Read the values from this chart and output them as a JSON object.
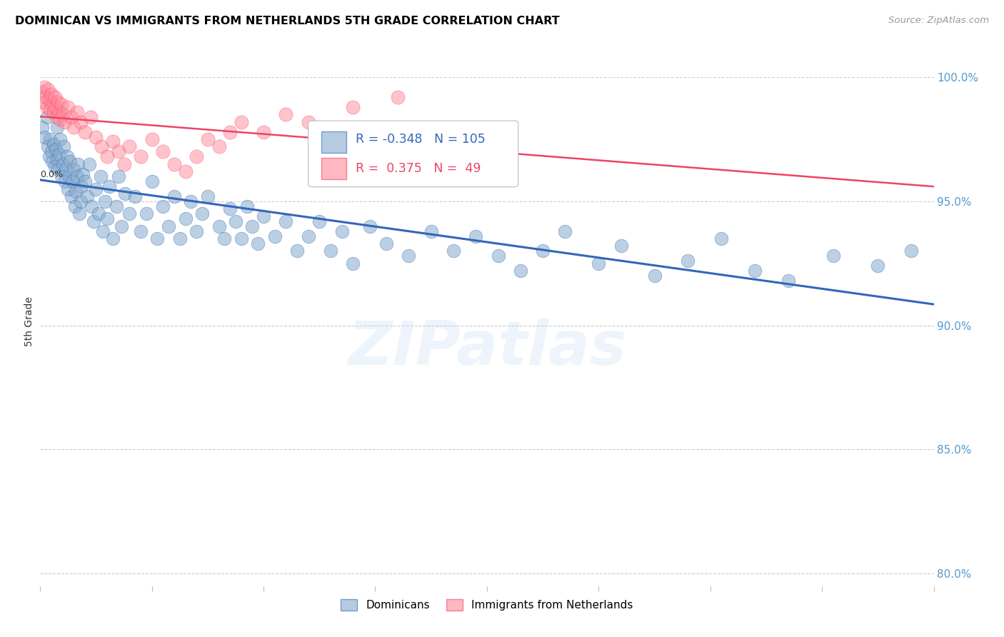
{
  "title": "DOMINICAN VS IMMIGRANTS FROM NETHERLANDS 5TH GRADE CORRELATION CHART",
  "source": "Source: ZipAtlas.com",
  "ylabel": "5th Grade",
  "ylabel_right_ticks": [
    80.0,
    85.0,
    90.0,
    95.0,
    100.0
  ],
  "xmin": 0.0,
  "xmax": 0.8,
  "ymin": 0.795,
  "ymax": 1.008,
  "blue_R": -0.348,
  "blue_N": 105,
  "pink_R": 0.375,
  "pink_N": 49,
  "blue_color": "#85AACC",
  "pink_color": "#FF8899",
  "blue_line_color": "#3366BB",
  "pink_line_color": "#EE4466",
  "legend_label_blue": "Dominicans",
  "legend_label_pink": "Immigrants from Netherlands",
  "watermark": "ZIPatlas",
  "background_color": "#FFFFFF",
  "grid_color": "#CCCCCC",
  "right_axis_color": "#5599CC",
  "title_fontsize": 11.5,
  "source_fontsize": 9.5,
  "blue_scatter_x": [
    0.002,
    0.004,
    0.006,
    0.007,
    0.008,
    0.009,
    0.01,
    0.011,
    0.012,
    0.013,
    0.014,
    0.015,
    0.015,
    0.016,
    0.017,
    0.018,
    0.019,
    0.02,
    0.021,
    0.022,
    0.023,
    0.024,
    0.025,
    0.026,
    0.027,
    0.028,
    0.029,
    0.03,
    0.031,
    0.032,
    0.033,
    0.034,
    0.035,
    0.036,
    0.037,
    0.038,
    0.04,
    0.042,
    0.044,
    0.046,
    0.048,
    0.05,
    0.052,
    0.054,
    0.056,
    0.058,
    0.06,
    0.062,
    0.065,
    0.068,
    0.07,
    0.073,
    0.076,
    0.08,
    0.085,
    0.09,
    0.095,
    0.1,
    0.105,
    0.11,
    0.115,
    0.12,
    0.125,
    0.13,
    0.135,
    0.14,
    0.145,
    0.15,
    0.16,
    0.165,
    0.17,
    0.175,
    0.18,
    0.185,
    0.19,
    0.195,
    0.2,
    0.21,
    0.22,
    0.23,
    0.24,
    0.25,
    0.26,
    0.27,
    0.28,
    0.295,
    0.31,
    0.33,
    0.35,
    0.37,
    0.39,
    0.41,
    0.43,
    0.45,
    0.47,
    0.5,
    0.52,
    0.55,
    0.58,
    0.61,
    0.64,
    0.67,
    0.71,
    0.75,
    0.78
  ],
  "blue_scatter_y": [
    0.98,
    0.976,
    0.984,
    0.972,
    0.968,
    0.975,
    0.97,
    0.966,
    0.973,
    0.964,
    0.971,
    0.967,
    0.98,
    0.963,
    0.969,
    0.975,
    0.96,
    0.965,
    0.972,
    0.958,
    0.963,
    0.968,
    0.955,
    0.96,
    0.966,
    0.952,
    0.958,
    0.963,
    0.948,
    0.954,
    0.96,
    0.965,
    0.945,
    0.95,
    0.956,
    0.961,
    0.958,
    0.952,
    0.965,
    0.948,
    0.942,
    0.955,
    0.945,
    0.96,
    0.938,
    0.95,
    0.943,
    0.956,
    0.935,
    0.948,
    0.96,
    0.94,
    0.953,
    0.945,
    0.952,
    0.938,
    0.945,
    0.958,
    0.935,
    0.948,
    0.94,
    0.952,
    0.935,
    0.943,
    0.95,
    0.938,
    0.945,
    0.952,
    0.94,
    0.935,
    0.947,
    0.942,
    0.935,
    0.948,
    0.94,
    0.933,
    0.944,
    0.936,
    0.942,
    0.93,
    0.936,
    0.942,
    0.93,
    0.938,
    0.925,
    0.94,
    0.933,
    0.928,
    0.938,
    0.93,
    0.936,
    0.928,
    0.922,
    0.93,
    0.938,
    0.925,
    0.932,
    0.92,
    0.926,
    0.935,
    0.922,
    0.918,
    0.928,
    0.924,
    0.93
  ],
  "pink_scatter_x": [
    0.002,
    0.003,
    0.004,
    0.005,
    0.006,
    0.007,
    0.008,
    0.009,
    0.01,
    0.011,
    0.012,
    0.013,
    0.014,
    0.015,
    0.016,
    0.017,
    0.018,
    0.019,
    0.02,
    0.022,
    0.025,
    0.028,
    0.03,
    0.033,
    0.036,
    0.04,
    0.045,
    0.05,
    0.055,
    0.06,
    0.065,
    0.07,
    0.075,
    0.08,
    0.09,
    0.1,
    0.11,
    0.12,
    0.13,
    0.14,
    0.15,
    0.16,
    0.17,
    0.18,
    0.2,
    0.22,
    0.24,
    0.28,
    0.32
  ],
  "pink_scatter_y": [
    0.994,
    0.99,
    0.996,
    0.992,
    0.988,
    0.995,
    0.991,
    0.987,
    0.993,
    0.989,
    0.986,
    0.992,
    0.988,
    0.984,
    0.99,
    0.986,
    0.983,
    0.989,
    0.985,
    0.982,
    0.988,
    0.984,
    0.98,
    0.986,
    0.982,
    0.978,
    0.984,
    0.976,
    0.972,
    0.968,
    0.974,
    0.97,
    0.965,
    0.972,
    0.968,
    0.975,
    0.97,
    0.965,
    0.962,
    0.968,
    0.975,
    0.972,
    0.978,
    0.982,
    0.978,
    0.985,
    0.982,
    0.988,
    0.992
  ]
}
